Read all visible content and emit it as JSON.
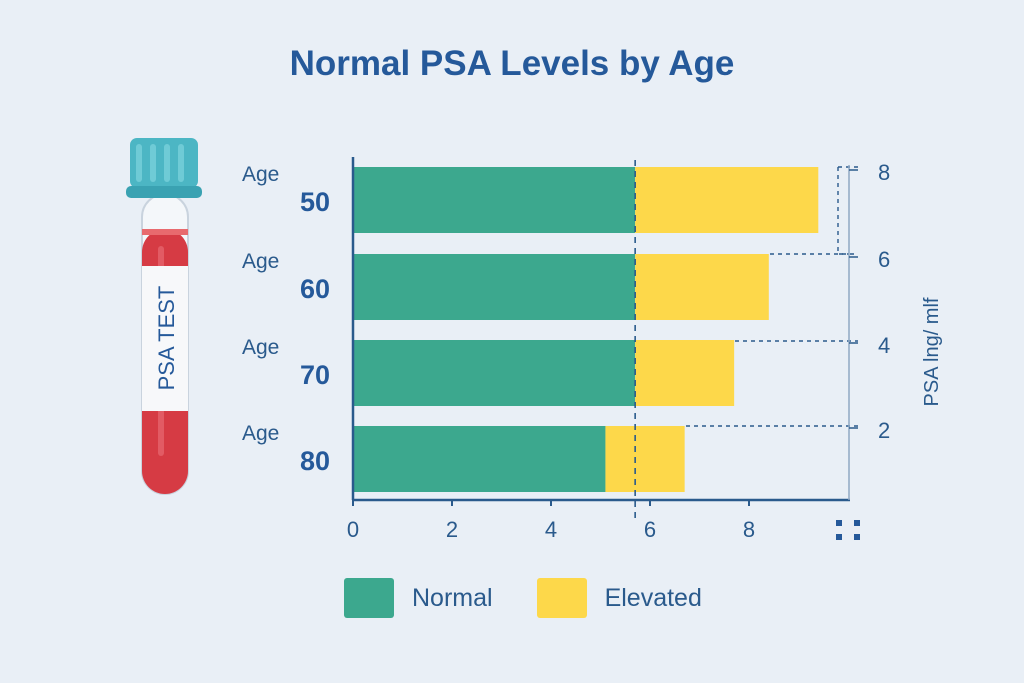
{
  "chart_data": {
    "type": "bar",
    "stacked": true,
    "orientation": "horizontal",
    "title": "Normal PSA Levels by Age",
    "categories": [
      {
        "prefix": "Age",
        "value": "50"
      },
      {
        "prefix": "Age",
        "value": "60"
      },
      {
        "prefix": "Age",
        "value": "70"
      },
      {
        "prefix": "Age",
        "value": "80"
      }
    ],
    "series": [
      {
        "name": "Normal",
        "color": "#3ca88e",
        "values": [
          5.7,
          5.7,
          5.7,
          5.1
        ]
      },
      {
        "name": "Elevated",
        "color": "#fdd84a",
        "values": [
          3.7,
          2.7,
          2.0,
          1.6
        ]
      }
    ],
    "xticks": [
      "0",
      "2",
      "4",
      "6",
      "8"
    ],
    "xlim": [
      0,
      10
    ],
    "right_axis": {
      "label": "PSA lng/ mlf",
      "ticks": [
        "2",
        "4",
        "6",
        "8"
      ]
    },
    "reference_line": 5.7,
    "grid": false,
    "legend": "bottom"
  },
  "tube": {
    "label": "PSA TEST",
    "cap_color": "#4cb6c4",
    "blood_color": "#d63b44"
  }
}
